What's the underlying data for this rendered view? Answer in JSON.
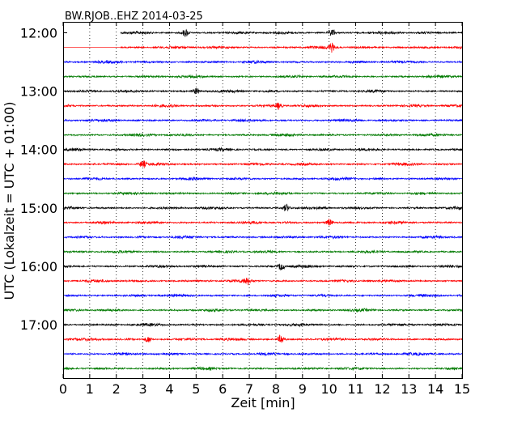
{
  "chart_data": {
    "type": "line",
    "title": "BW.RJOB..EHZ 2014-03-25",
    "xlabel": "Zeit  [min]",
    "ylabel": "UTC (Lokalzeit = UTC + 01:00)",
    "x_ticks": [
      "0",
      "1",
      "2",
      "3",
      "4",
      "5",
      "6",
      "7",
      "8",
      "9",
      "10",
      "11",
      "12",
      "13",
      "14",
      "15"
    ],
    "xlim": [
      0,
      15
    ],
    "y_ticks": [
      "12:00",
      "13:00",
      "14:00",
      "15:00",
      "16:00",
      "17:00"
    ],
    "grid": "vertical dotted",
    "line_minutes": 15,
    "trace_count": 24,
    "series_colors": [
      "#000000",
      "#ff0000",
      "#0000ff",
      "#007a00"
    ],
    "gaps": [
      {
        "trace": 0,
        "from_min": 0,
        "to_min": 2.15
      },
      {
        "trace": 1,
        "from_min": 0,
        "to_min": 2.15
      }
    ],
    "bursts": [
      {
        "trace": 0,
        "at_min": 4.6,
        "strength": 1.6
      },
      {
        "trace": 0,
        "at_min": 10.1,
        "strength": 1.5
      },
      {
        "trace": 1,
        "at_min": 10.1,
        "strength": 1.6
      },
      {
        "trace": 4,
        "at_min": 5.0,
        "strength": 1.3
      },
      {
        "trace": 5,
        "at_min": 8.1,
        "strength": 1.4
      },
      {
        "trace": 9,
        "at_min": 3.0,
        "strength": 1.3
      },
      {
        "trace": 12,
        "at_min": 8.4,
        "strength": 1.4
      },
      {
        "trace": 13,
        "at_min": 10.0,
        "strength": 1.4
      },
      {
        "trace": 16,
        "at_min": 8.2,
        "strength": 1.7
      },
      {
        "trace": 17,
        "at_min": 6.9,
        "strength": 1.3
      },
      {
        "trace": 21,
        "at_min": 3.2,
        "strength": 1.4
      },
      {
        "trace": 21,
        "at_min": 8.2,
        "strength": 1.8
      }
    ]
  }
}
